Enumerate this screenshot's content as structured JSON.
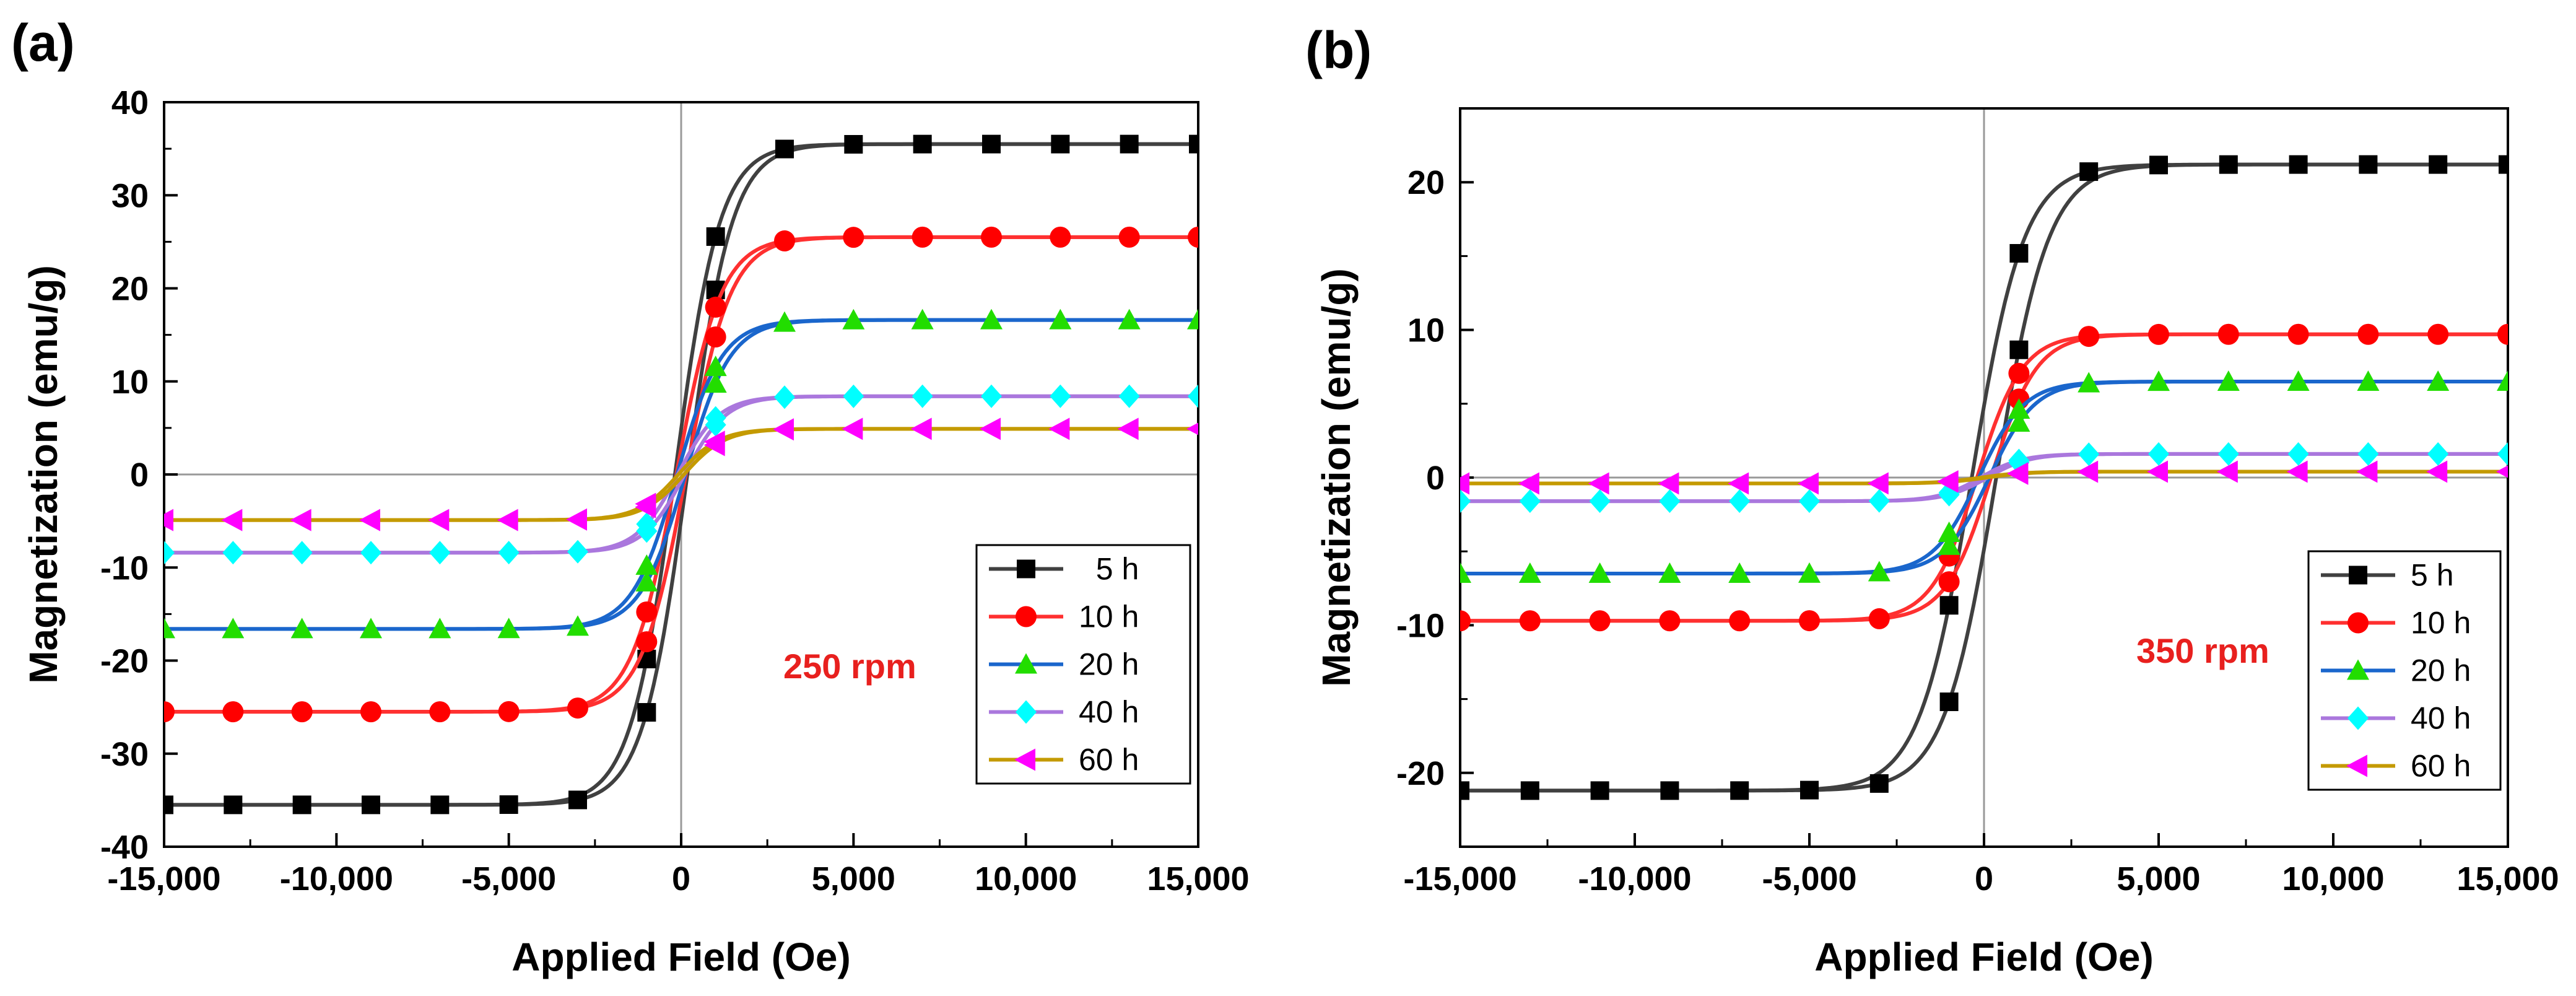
{
  "chart_data": [
    {
      "type": "line",
      "panel_label": "(a)",
      "title": "",
      "xlabel": "Applied Field (Oe)",
      "ylabel": "Magnetization (emu/g)",
      "xlim": [
        -15000,
        15000
      ],
      "ylim": [
        -40,
        40
      ],
      "xticks": [
        -15000,
        -10000,
        -5000,
        0,
        5000,
        10000,
        15000
      ],
      "xtick_labels": [
        "-15,000",
        "-10,000",
        "-5,000",
        "0",
        "5,000",
        "10,000",
        "15,000"
      ],
      "yticks": [
        -40,
        -30,
        -20,
        -10,
        0,
        10,
        20,
        30,
        40
      ],
      "ytick_labels": [
        "-40",
        "-30",
        "-20",
        "-10",
        "0",
        "10",
        "20",
        "30",
        "40"
      ],
      "annotation": "250 rpm",
      "annotation_color": "#e8201e",
      "legend_position": "bottom-right",
      "grid": false,
      "series": [
        {
          "name": "5 h",
          "label": "  5 h",
          "line_color": "#404040",
          "marker_color": "#000000",
          "marker": "square",
          "Ms": 35.5,
          "Hc": 180,
          "k": 1300
        },
        {
          "name": "10 h",
          "label": "10 h",
          "line_color": "#ff3030",
          "marker_color": "#ff0000",
          "marker": "circle",
          "Ms": 25.5,
          "Hc": 140,
          "k": 1300
        },
        {
          "name": "20 h",
          "label": "20 h",
          "line_color": "#1a66cc",
          "marker_color": "#22dd00",
          "marker": "triangle-up",
          "Ms": 16.6,
          "Hc": 120,
          "k": 1300
        },
        {
          "name": "40 h",
          "label": "40 h",
          "line_color": "#aa77dd",
          "marker_color": "#00ffff",
          "marker": "diamond",
          "Ms": 8.4,
          "Hc": 100,
          "k": 1200
        },
        {
          "name": "60 h",
          "label": "60 h",
          "line_color": "#c49a00",
          "marker_color": "#ff00ff",
          "marker": "triangle-left",
          "Ms": 4.9,
          "Hc": 80,
          "k": 1200
        }
      ]
    },
    {
      "type": "line",
      "panel_label": "(b)",
      "title": "",
      "xlabel": "Applied Field (Oe)",
      "ylabel": "Magnetization (emu/g)",
      "xlim": [
        -15000,
        15000
      ],
      "ylim": [
        -25,
        25
      ],
      "xticks": [
        -15000,
        -10000,
        -5000,
        0,
        5000,
        10000,
        15000
      ],
      "xtick_labels": [
        "-15,000",
        "-10,000",
        "-5,000",
        "0",
        "5,000",
        "10,000",
        "15,000"
      ],
      "yticks": [
        -20,
        -10,
        0,
        10,
        20
      ],
      "ytick_labels": [
        "-20",
        "-10",
        "0",
        "10",
        "20"
      ],
      "annotation": "350 rpm",
      "annotation_color": "#e8201e",
      "legend_position": "bottom-right",
      "grid": false,
      "series": [
        {
          "name": "5 h",
          "label": "5 h",
          "line_color": "#404040",
          "marker_color": "#000000",
          "marker": "square",
          "Ms": 21.2,
          "Hc": 350,
          "k": 1500
        },
        {
          "name": "10 h",
          "label": "10 h",
          "line_color": "#ff3030",
          "marker_color": "#ff0000",
          "marker": "circle",
          "Ms": 9.7,
          "Hc": 200,
          "k": 1300
        },
        {
          "name": "20 h",
          "label": "20 h",
          "line_color": "#1a66cc",
          "marker_color": "#22dd00",
          "marker": "triangle-up",
          "Ms": 6.5,
          "Hc": 150,
          "k": 1300
        },
        {
          "name": "40 h",
          "label": "40 h",
          "line_color": "#aa77dd",
          "marker_color": "#00ffff",
          "marker": "diamond",
          "Ms": 1.6,
          "Hc": 100,
          "k": 1200
        },
        {
          "name": "60 h",
          "label": "60 h",
          "line_color": "#c49a00",
          "marker_color": "#ff00ff",
          "marker": "triangle-left",
          "Ms": 0.4,
          "Hc": 80,
          "k": 1200
        }
      ]
    }
  ]
}
